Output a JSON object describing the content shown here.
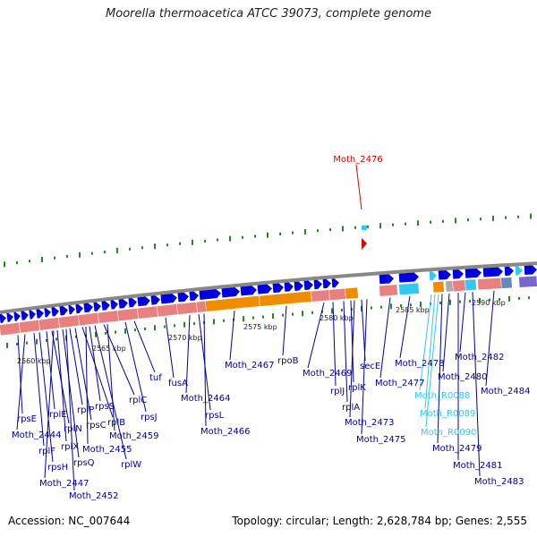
{
  "title": "Moorella thermoacetica ATCC 39073, complete genome",
  "footer": {
    "accession": "Accession: NC_007644",
    "info": "Topology: circular; Length: 2,628,784 bp; Genes: 2,555"
  },
  "colors": {
    "backbone": "#888888",
    "forward_gene": "#0000e0",
    "rrna": "#e88080",
    "orange_band": "#f08c00",
    "tick": "#228822",
    "label": "#00009a",
    "highlight": "#dd0000",
    "trna": "#33c8f0"
  },
  "kbp_labels": [
    "2560 kbp",
    "2565 kbp",
    "2570 kbp",
    "2575 kbp",
    "2580 kbp",
    "2585 kbp",
    "2590 kbp"
  ],
  "highlight_gene": "Moth_2476",
  "gene_labels": [
    "rpsE",
    "Moth_2444",
    "rplF",
    "rpsH",
    "rplE",
    "rplN",
    "rplX",
    "rpsQ",
    "Moth_2447",
    "rplP",
    "rpsC",
    "rplB",
    "Moth_2452",
    "rpsS",
    "Moth_2455",
    "rplW",
    "rplC",
    "Moth_2459",
    "rpsJ",
    "tuf",
    "fusA",
    "Moth_2464",
    "rpsL",
    "Moth_2466",
    "Moth_2467",
    "rpoB",
    "Moth_2469",
    "rplJ",
    "rplA",
    "rplK",
    "Moth_2473",
    "secE",
    "Moth_2475",
    "Moth_2477",
    "Moth_2478",
    "Moth_R0088",
    "Moth_R0089",
    "Moth_R0090",
    "Moth_2479",
    "Moth_2480",
    "Moth_2481",
    "Moth_2482",
    "Moth_2483",
    "Moth_2484"
  ]
}
